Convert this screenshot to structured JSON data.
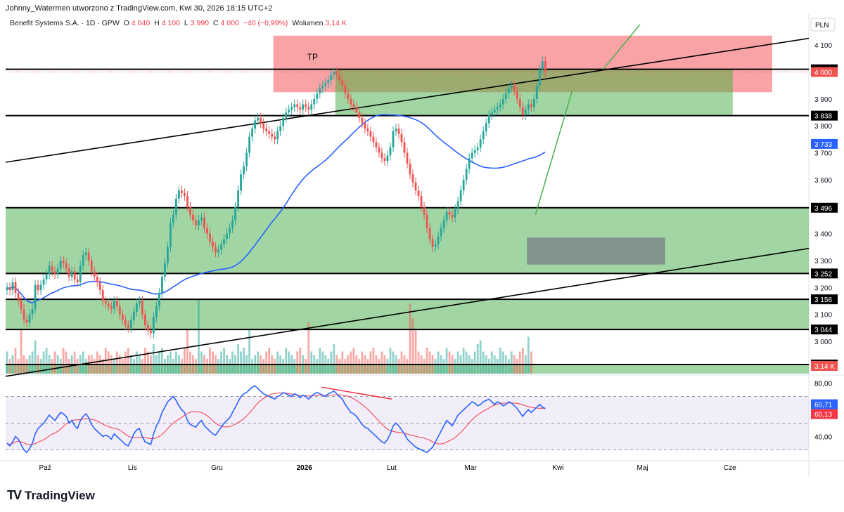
{
  "header": {
    "attribution": "Johnny_Watermen utworzono z TradingView.com, Kwi 30, 2026 18:15 UTC+2",
    "symbol": "Benefit Systems S.A. · 1D · GPW",
    "o_label": "O",
    "o_value": "4 040",
    "h_label": "H",
    "h_value": "4 100",
    "l_label": "L",
    "l_value": "3 990",
    "c_label": "C",
    "c_value": "4 000",
    "change": "−40 (−0,99%)",
    "vol_label": "Wolumen",
    "vol_value": "3,14 K"
  },
  "footer": {
    "logo_text": "TradingView"
  },
  "colors": {
    "up": "#26a69a",
    "down": "#ef5350",
    "ma": "#2962ff",
    "zone_green": "#81c784",
    "zone_red": "#f77c80",
    "zone_gray": "#787b86",
    "rsi": "#2962ff",
    "rsi_ma": "#f23645"
  },
  "chart_data": {
    "type": "candlestick",
    "currency": "PLN",
    "price_axis": {
      "min": 2880,
      "max": 4150,
      "ticks": [
        3000,
        3100,
        3200,
        3300,
        3400,
        3500,
        3600,
        3700,
        3800,
        3900,
        4000,
        4100
      ],
      "tick_labels": [
        "3 000",
        "3 100",
        "3 200",
        "3 300",
        "3 400",
        "3 500",
        "3 600",
        "3 700",
        "3 800",
        "3 900",
        "4 000",
        "4 100"
      ]
    },
    "x_labels": [
      {
        "label": "Paź",
        "day": 14
      },
      {
        "label": "Lis",
        "day": 45
      },
      {
        "label": "Gru",
        "day": 75
      },
      {
        "label": "2026",
        "day": 106
      },
      {
        "label": "Lut",
        "day": 137
      },
      {
        "label": "Mar",
        "day": 165
      },
      {
        "label": "Kwi",
        "day": 196
      },
      {
        "label": "Maj",
        "day": 226
      },
      {
        "label": "Cze",
        "day": 257
      }
    ],
    "day_range": [
      0,
      285
    ],
    "closes": [
      3200,
      3190,
      3220,
      3180,
      3150,
      3120,
      3080,
      3070,
      3100,
      3120,
      3210,
      3190,
      3210,
      3230,
      3250,
      3280,
      3260,
      3250,
      3270,
      3300,
      3290,
      3270,
      3240,
      3260,
      3230,
      3220,
      3280,
      3320,
      3330,
      3300,
      3260,
      3240,
      3220,
      3190,
      3150,
      3140,
      3130,
      3120,
      3150,
      3130,
      3100,
      3080,
      3060,
      3050,
      3080,
      3110,
      3140,
      3150,
      3100,
      3060,
      3040,
      3030,
      3090,
      3130,
      3180,
      3240,
      3290,
      3350,
      3440,
      3470,
      3530,
      3560,
      3550,
      3540,
      3500,
      3470,
      3450,
      3430,
      3450,
      3460,
      3420,
      3400,
      3370,
      3350,
      3330,
      3340,
      3360,
      3380,
      3400,
      3420,
      3450,
      3500,
      3560,
      3620,
      3650,
      3700,
      3760,
      3790,
      3820,
      3830,
      3810,
      3790,
      3780,
      3770,
      3760,
      3750,
      3780,
      3800,
      3830,
      3850,
      3860,
      3870,
      3880,
      3870,
      3860,
      3880,
      3870,
      3860,
      3880,
      3900,
      3920,
      3940,
      3950,
      3960,
      3970,
      3990,
      4000,
      3990,
      3970,
      3950,
      3920,
      3900,
      3880,
      3870,
      3850,
      3830,
      3810,
      3790,
      3780,
      3760,
      3740,
      3720,
      3700,
      3680,
      3670,
      3690,
      3720,
      3780,
      3790,
      3770,
      3740,
      3700,
      3660,
      3620,
      3590,
      3560,
      3540,
      3500,
      3470,
      3420,
      3380,
      3350,
      3360,
      3390,
      3420,
      3450,
      3480,
      3470,
      3460,
      3490,
      3520,
      3560,
      3600,
      3640,
      3680,
      3700,
      3710,
      3720,
      3750,
      3780,
      3810,
      3840,
      3850,
      3860,
      3870,
      3880,
      3900,
      3920,
      3940,
      3950,
      3930,
      3900,
      3870,
      3840,
      3860,
      3880,
      3870,
      3900,
      3950,
      4010,
      4040,
      4000
    ],
    "ma_label": "3 733",
    "ma_value": 3733,
    "volume": {
      "values": [
        30,
        20,
        25,
        35,
        20,
        60,
        25,
        20,
        25,
        30,
        45,
        25,
        20,
        30,
        35,
        25,
        20,
        30,
        25,
        20,
        35,
        30,
        20,
        25,
        30,
        20,
        25,
        30,
        20,
        25,
        25,
        20,
        30,
        25,
        20,
        35,
        30,
        25,
        20,
        30,
        25,
        20,
        30,
        35,
        25,
        20,
        30,
        25,
        20,
        35,
        30,
        25,
        40,
        25,
        30,
        35,
        20,
        25,
        30,
        20,
        30,
        25,
        20,
        35,
        60,
        30,
        25,
        20,
        100,
        30,
        25,
        20,
        35,
        30,
        25,
        20,
        30,
        35,
        25,
        20,
        30,
        25,
        40,
        30,
        35,
        25,
        60,
        20,
        25,
        30,
        25,
        20,
        30,
        35,
        25,
        20,
        30,
        25,
        20,
        35,
        30,
        25,
        20,
        30,
        35,
        25,
        20,
        70,
        30,
        25,
        20,
        35,
        30,
        25,
        20,
        30,
        40,
        25,
        20,
        30,
        20,
        25,
        30,
        35,
        25,
        20,
        30,
        25,
        20,
        30,
        35,
        25,
        20,
        30,
        25,
        20,
        35,
        30,
        25,
        20,
        30,
        25,
        20,
        95,
        75,
        60,
        30,
        25,
        20,
        35,
        30,
        25,
        20,
        30,
        25,
        20,
        35,
        30,
        25,
        20,
        30,
        25,
        35,
        30,
        25,
        20,
        30,
        40,
        45,
        30,
        25,
        20,
        30,
        25,
        20,
        35,
        30,
        25,
        20,
        30,
        25,
        20,
        30,
        35,
        25,
        50,
        30
      ],
      "max_label": "3,14 K"
    },
    "horizontal_levels": [
      {
        "price": 4010,
        "label": "4 010"
      },
      {
        "price": 3838,
        "label": "3 838"
      },
      {
        "price": 3496,
        "label": "3 496"
      },
      {
        "price": 3252,
        "label": "3 252"
      },
      {
        "price": 3156,
        "label": "3 156"
      },
      {
        "price": 3044,
        "label": "3 044"
      },
      {
        "price": 2914,
        "label": "2 914"
      }
    ],
    "current_price": {
      "price": 4000,
      "label": "4 000"
    },
    "zones": [
      {
        "kind": "tp",
        "from_day": 95,
        "to_day": 272,
        "top": 4135,
        "bottom": 3925,
        "label": "TP"
      },
      {
        "kind": "green",
        "from_day": 117,
        "to_day": 258,
        "top": 4010,
        "bottom": 3838
      },
      {
        "kind": "green",
        "from_day": 0,
        "to_day": 285,
        "top": 3496,
        "bottom": 3252
      },
      {
        "kind": "green",
        "from_day": 0,
        "to_day": 285,
        "top": 3156,
        "bottom": 3044
      },
      {
        "kind": "green",
        "from_day": 0,
        "to_day": 285,
        "top": 2914,
        "bottom": 2880
      },
      {
        "kind": "gray",
        "from_day": 185,
        "to_day": 234,
        "top": 3385,
        "bottom": 3285
      }
    ],
    "trendlines": [
      {
        "from": [
          0,
          3665
        ],
        "to": [
          285,
          4125
        ]
      },
      {
        "from": [
          0,
          2870
        ],
        "to": [
          285,
          3345
        ]
      }
    ],
    "rsi": {
      "axis_ticks": [
        80,
        40
      ],
      "tick_labels": [
        "80,00",
        "40,00"
      ],
      "min": 25,
      "max": 85,
      "upper_band": 70,
      "mid": 50,
      "lower_band": 30,
      "value_label": "60,71",
      "ma_label": "60,13",
      "values": [
        35,
        33,
        36,
        40,
        38,
        34,
        30,
        28,
        31,
        35,
        42,
        46,
        48,
        50,
        53,
        56,
        54,
        52,
        55,
        58,
        57,
        55,
        50,
        52,
        48,
        46,
        52,
        55,
        57,
        54,
        49,
        46,
        44,
        42,
        40,
        41,
        40,
        38,
        42,
        40,
        38,
        36,
        34,
        33,
        37,
        42,
        45,
        46,
        40,
        36,
        35,
        34,
        42,
        48,
        52,
        58,
        62,
        66,
        68,
        70,
        67,
        63,
        60,
        58,
        52,
        49,
        48,
        47,
        50,
        52,
        48,
        46,
        44,
        42,
        41,
        44,
        47,
        50,
        52,
        54,
        58,
        62,
        66,
        70,
        72,
        73,
        75,
        77,
        78,
        76,
        74,
        72,
        71,
        70,
        69,
        68,
        70,
        71,
        73,
        72,
        71,
        70,
        72,
        71,
        69,
        71,
        70,
        68,
        70,
        72,
        73,
        72,
        71,
        70,
        72,
        73,
        74,
        72,
        70,
        68,
        64,
        61,
        58,
        57,
        55,
        52,
        49,
        47,
        46,
        44,
        42,
        40,
        38,
        36,
        35,
        38,
        42,
        48,
        50,
        48,
        45,
        42,
        38,
        36,
        34,
        32,
        31,
        30,
        29,
        28,
        30,
        32,
        36,
        40,
        44,
        48,
        52,
        50,
        48,
        52,
        56,
        58,
        60,
        62,
        64,
        66,
        65,
        63,
        64,
        66,
        67,
        68,
        66,
        64,
        66,
        65,
        63,
        64,
        66,
        65,
        63,
        61,
        58,
        55,
        58,
        60,
        58,
        60,
        62,
        64,
        62,
        61
      ]
    }
  }
}
